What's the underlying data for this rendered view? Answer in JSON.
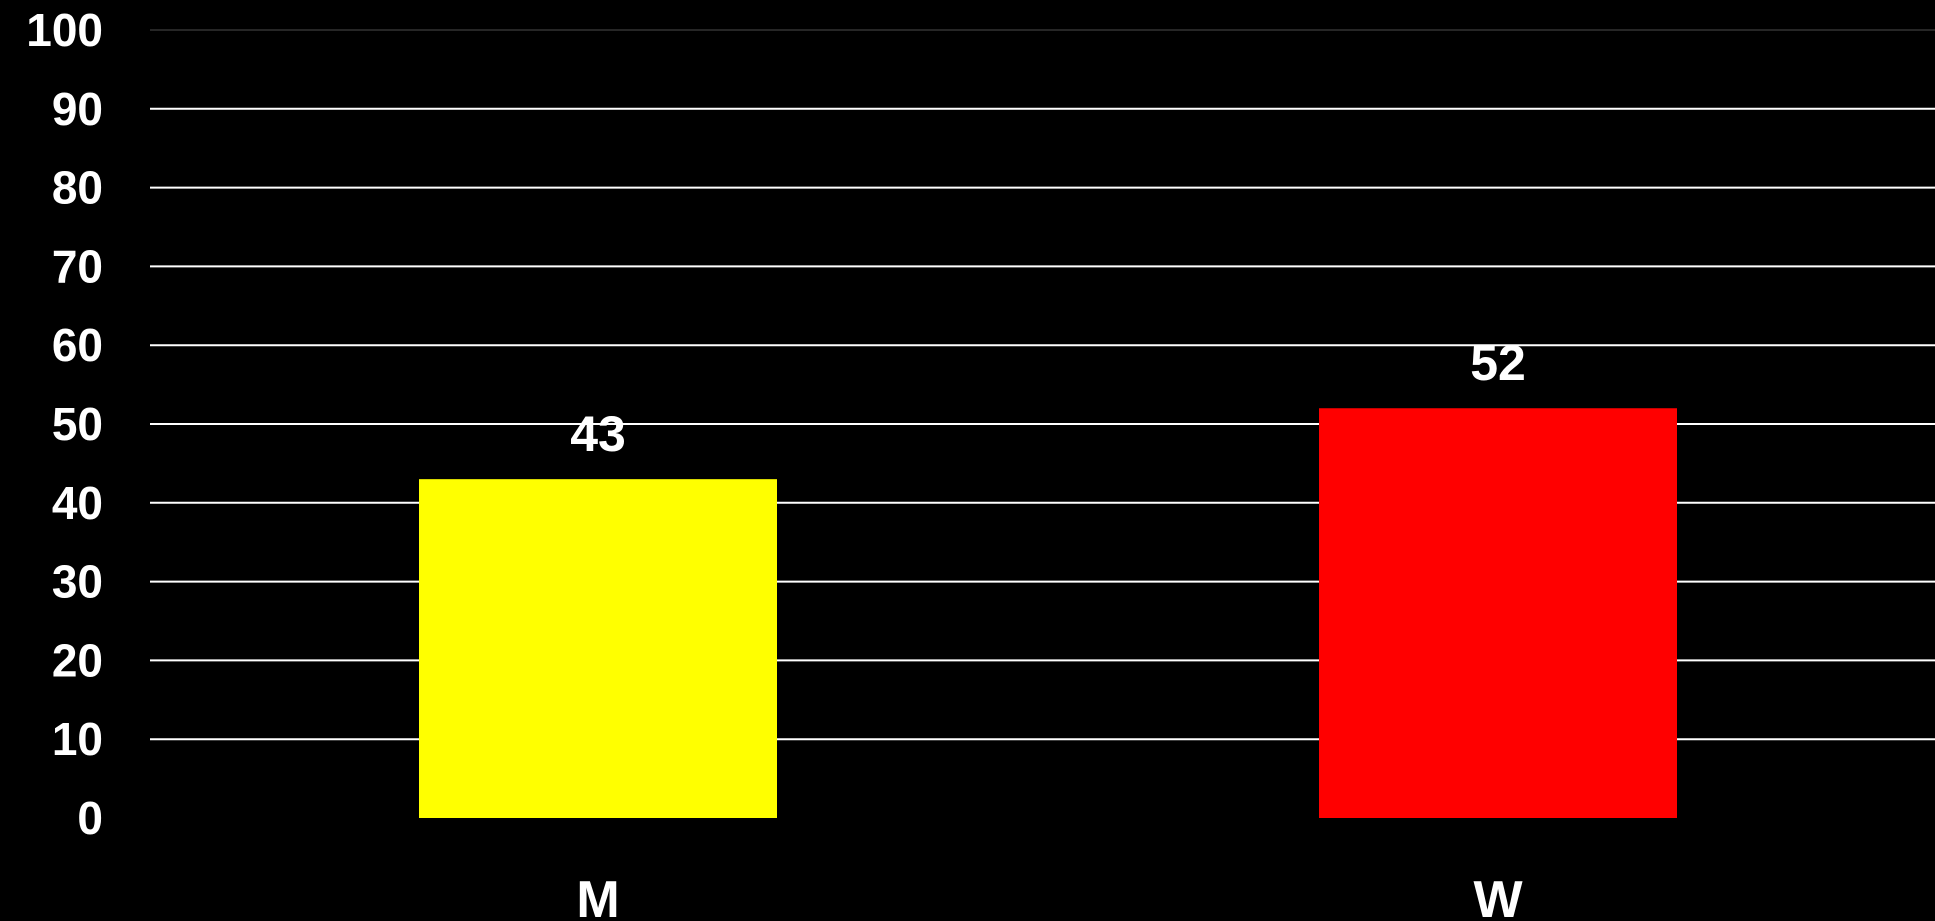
{
  "chart_data": {
    "type": "bar",
    "categories": [
      "M",
      "W"
    ],
    "values": [
      43,
      52
    ],
    "data_labels": [
      "43",
      "52"
    ],
    "bar_colors": [
      "#FFFF00",
      "#FF0000"
    ],
    "ylim": [
      0,
      100
    ],
    "yticks": [
      0,
      10,
      20,
      30,
      40,
      50,
      60,
      70,
      80,
      90,
      100
    ],
    "ytick_labels": [
      "0",
      "10",
      "20",
      "30",
      "40",
      "50",
      "60",
      "70",
      "80",
      "90",
      "100"
    ],
    "grid": true,
    "grid_color": "#FFFFFF",
    "background": "#000000",
    "text_color": "#FFFFFF",
    "title": "",
    "xlabel": "",
    "ylabel": ""
  }
}
